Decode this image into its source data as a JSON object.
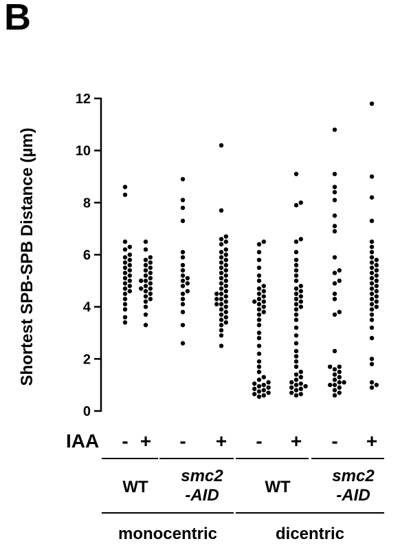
{
  "panel_label": "B",
  "chart_data": {
    "type": "scatter",
    "ylabel": "Shortest SPB-SPB Distance (µm)",
    "ylim": [
      0,
      12
    ],
    "yticks": [
      0,
      2,
      4,
      6,
      8,
      10,
      12
    ],
    "grid": false,
    "row_label": "IAA",
    "iaa_values": [
      "-",
      "+",
      "-",
      "+",
      "-",
      "+",
      "-",
      "+"
    ],
    "genotypes": [
      {
        "line1": "WT",
        "line2": "",
        "italic": false
      },
      {
        "line1": "smc2",
        "line2": "-AID",
        "italic": true
      },
      {
        "line1": "WT",
        "line2": "",
        "italic": false
      },
      {
        "line1": "smc2",
        "line2": "-AID",
        "italic": true
      }
    ],
    "groups": [
      "monocentric",
      "dicentric"
    ],
    "series": [
      {
        "values": [
          3.4,
          3.6,
          3.9,
          4.1,
          4.3,
          4.5,
          4.6,
          4.7,
          4.8,
          4.9,
          5.0,
          5.1,
          5.2,
          5.3,
          5.4,
          5.5,
          5.6,
          5.7,
          5.8,
          5.9,
          6.0,
          6.2,
          6.3,
          6.5,
          8.3,
          8.6
        ]
      },
      {
        "values": [
          3.3,
          3.7,
          4.0,
          4.2,
          4.3,
          4.4,
          4.5,
          4.6,
          4.7,
          4.7,
          4.8,
          4.9,
          5.0,
          5.0,
          5.1,
          5.2,
          5.3,
          5.4,
          5.5,
          5.6,
          5.7,
          5.8,
          5.9,
          6.2,
          6.5
        ]
      },
      {
        "values": [
          2.6,
          3.3,
          3.8,
          4.1,
          4.3,
          4.5,
          4.6,
          4.8,
          4.9,
          5.0,
          5.1,
          5.2,
          5.4,
          5.6,
          5.9,
          6.1,
          7.3,
          7.8,
          8.1,
          8.9
        ]
      },
      {
        "values": [
          2.5,
          2.9,
          3.1,
          3.3,
          3.4,
          3.5,
          3.6,
          3.7,
          3.8,
          3.9,
          4.0,
          4.1,
          4.1,
          4.2,
          4.3,
          4.3,
          4.4,
          4.5,
          4.5,
          4.6,
          4.7,
          4.8,
          4.9,
          5.0,
          5.1,
          5.2,
          5.3,
          5.4,
          5.5,
          5.6,
          5.7,
          5.8,
          5.9,
          6.0,
          6.1,
          6.2,
          6.4,
          6.5,
          6.6,
          6.7,
          7.7,
          10.2
        ]
      },
      {
        "values": [
          0.55,
          0.6,
          0.65,
          0.7,
          0.75,
          0.8,
          0.85,
          0.9,
          0.95,
          1.0,
          1.05,
          1.1,
          1.2,
          1.3,
          1.5,
          1.7,
          1.9,
          2.2,
          2.5,
          2.8,
          3.0,
          3.3,
          3.5,
          3.7,
          3.8,
          3.9,
          4.0,
          4.1,
          4.2,
          4.2,
          4.3,
          4.4,
          4.5,
          4.6,
          4.7,
          4.8,
          5.0,
          5.2,
          5.5,
          5.8,
          6.1,
          6.4,
          6.5
        ]
      },
      {
        "values": [
          0.6,
          0.65,
          0.7,
          0.8,
          0.85,
          0.9,
          0.95,
          1.0,
          1.05,
          1.1,
          1.2,
          1.3,
          1.4,
          1.5,
          1.7,
          1.9,
          2.1,
          2.3,
          2.6,
          2.9,
          3.2,
          3.5,
          3.7,
          3.9,
          4.0,
          4.1,
          4.2,
          4.3,
          4.4,
          4.5,
          4.6,
          4.7,
          4.8,
          5.0,
          5.2,
          5.4,
          5.6,
          5.8,
          6.1,
          6.5,
          6.6,
          7.9,
          8.0,
          9.1
        ]
      },
      {
        "values": [
          0.6,
          0.7,
          0.8,
          0.9,
          1.0,
          1.0,
          1.1,
          1.1,
          1.2,
          1.3,
          1.4,
          1.5,
          1.6,
          1.7,
          1.7,
          2.3,
          3.7,
          3.8,
          4.3,
          4.5,
          4.9,
          5.0,
          5.3,
          5.4,
          5.9,
          6.9,
          7.1,
          7.5,
          8.1,
          8.4,
          8.6,
          9.1,
          10.8
        ]
      },
      {
        "values": [
          0.9,
          1.0,
          1.1,
          1.8,
          2.0,
          2.8,
          3.2,
          3.5,
          3.7,
          3.9,
          4.0,
          4.1,
          4.2,
          4.3,
          4.4,
          4.5,
          4.6,
          4.7,
          4.8,
          4.9,
          5.0,
          5.1,
          5.2,
          5.3,
          5.4,
          5.5,
          5.6,
          5.7,
          5.8,
          5.9,
          6.1,
          6.3,
          6.5,
          7.3,
          8.2,
          9.0,
          11.8
        ]
      }
    ]
  }
}
